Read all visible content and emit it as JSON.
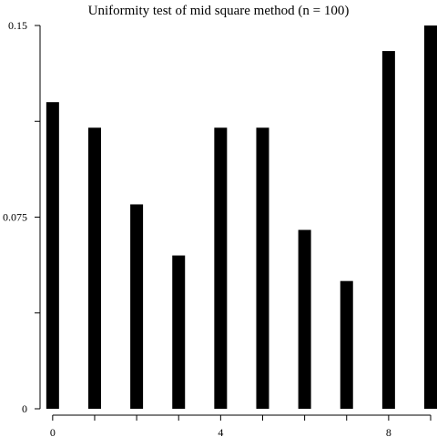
{
  "chart_data": {
    "type": "bar",
    "title": "Uniformity test of mid square method (n = 100)",
    "xlabel": "",
    "ylabel": "",
    "categories": [
      0,
      1,
      2,
      3,
      4,
      5,
      6,
      7,
      8,
      9
    ],
    "values": [
      0.12,
      0.11,
      0.08,
      0.06,
      0.11,
      0.11,
      0.07,
      0.05,
      0.14,
      0.15
    ],
    "ylim": [
      0,
      0.15
    ],
    "xlim": [
      -0.3,
      9
    ],
    "y_ticks": [
      {
        "value": 0,
        "label": "0"
      },
      {
        "value": 0.0375,
        "label": ""
      },
      {
        "value": 0.075,
        "label": "0.075"
      },
      {
        "value": 0.1125,
        "label": ""
      },
      {
        "value": 0.15,
        "label": "0.15"
      }
    ],
    "x_ticks": [
      {
        "value": 0,
        "label": "0"
      },
      {
        "value": 1,
        "label": ""
      },
      {
        "value": 2,
        "label": ""
      },
      {
        "value": 3,
        "label": ""
      },
      {
        "value": 4,
        "label": "4"
      },
      {
        "value": 5,
        "label": ""
      },
      {
        "value": 6,
        "label": ""
      },
      {
        "value": 7,
        "label": ""
      },
      {
        "value": 8,
        "label": "8"
      },
      {
        "value": 9,
        "label": ""
      }
    ],
    "grid": false,
    "bar_color": "#000000",
    "axis_color": "#000000"
  }
}
